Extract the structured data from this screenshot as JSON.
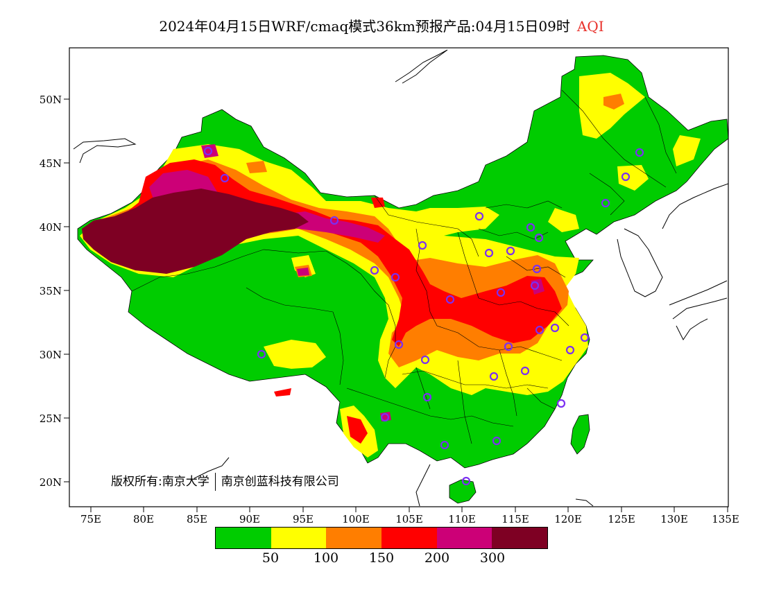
{
  "title": {
    "main": "2024年04月15日WRF/cmaq模式36km预报产品:04月15日09时",
    "variable": "AQI"
  },
  "map": {
    "lat_labels": [
      "50N",
      "45N",
      "40N",
      "35N",
      "30N",
      "25N",
      "20N"
    ],
    "lon_labels": [
      "75E",
      "80E",
      "85E",
      "90E",
      "95E",
      "100E",
      "105E",
      "110E",
      "115E",
      "120E",
      "125E",
      "130E",
      "135E"
    ],
    "copyright_left": "版权所有:南京大学",
    "copyright_right": "南京创蓝科技有限公司"
  },
  "legend": {
    "colors": [
      "#00cc00",
      "#ffff00",
      "#ff7e00",
      "#ff0000",
      "#cc0077",
      "#7e0023"
    ],
    "ticks": [
      "50",
      "100",
      "150",
      "200",
      "300"
    ]
  },
  "colors": {
    "aqi_text": "#e8312b",
    "station_marker": "#7b2ff2"
  }
}
